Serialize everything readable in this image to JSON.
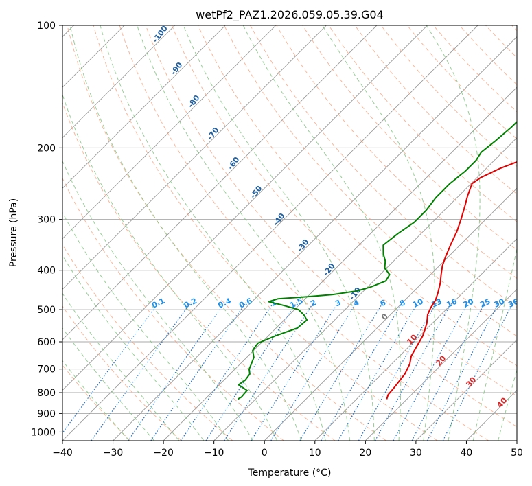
{
  "chart_data": {
    "type": "line",
    "title": "wetPf2_PAZ1.2026.059.05.39.G04",
    "xlabel": "Temperature (°C)",
    "ylabel": "Pressure (hPa)",
    "xlim": [
      -40,
      50
    ],
    "ylim": [
      1050,
      100
    ],
    "y_scale": "log",
    "grid": true,
    "x_ticks": [
      -40,
      -30,
      -20,
      -10,
      0,
      10,
      20,
      30,
      40,
      50
    ],
    "y_ticks": [
      100,
      200,
      300,
      400,
      500,
      600,
      700,
      800,
      900,
      1000
    ],
    "series": [
      {
        "color": "#e00000",
        "points": [
          [
            16,
            830
          ],
          [
            15.4,
            810
          ],
          [
            15.2,
            780
          ],
          [
            14.6,
            720
          ],
          [
            13.6,
            680
          ],
          [
            12.3,
            650
          ],
          [
            11.6,
            620
          ],
          [
            10.6,
            580
          ],
          [
            8.9,
            540
          ],
          [
            7.4,
            515
          ],
          [
            6.6,
            495
          ],
          [
            6.1,
            475
          ],
          [
            5.1,
            455
          ],
          [
            3.6,
            430
          ],
          [
            2.1,
            410
          ],
          [
            0.6,
            390
          ],
          [
            -0.6,
            370
          ],
          [
            -2,
            345
          ],
          [
            -3.4,
            320
          ],
          [
            -4.9,
            300
          ],
          [
            -6.6,
            280
          ],
          [
            -8.3,
            262
          ],
          [
            -9.8,
            245
          ],
          [
            -9.3,
            237
          ],
          [
            -7.3,
            225
          ],
          [
            -4.8,
            215
          ],
          [
            -2.6,
            205
          ],
          [
            0.9,
            193
          ],
          [
            3.6,
            183
          ],
          [
            6.2,
            173
          ],
          [
            8.4,
            160
          ],
          [
            10.1,
            146
          ],
          [
            12,
            132
          ],
          [
            13.7,
            120
          ],
          [
            14.4,
            112
          ],
          [
            15.2,
            105
          ],
          [
            15.5,
            100
          ]
        ]
      },
      {
        "color": "#008000",
        "points": [
          [
            -13.5,
            830
          ],
          [
            -13.2,
            820
          ],
          [
            -13.4,
            790
          ],
          [
            -16.2,
            765
          ],
          [
            -15.8,
            745
          ],
          [
            -16.1,
            720
          ],
          [
            -17.2,
            700
          ],
          [
            -17.8,
            680
          ],
          [
            -18.6,
            655
          ],
          [
            -20.2,
            630
          ],
          [
            -20.6,
            605
          ],
          [
            -18.6,
            580
          ],
          [
            -15.8,
            555
          ],
          [
            -15.5,
            530
          ],
          [
            -17.1,
            515
          ],
          [
            -19.2,
            500
          ],
          [
            -23.4,
            487
          ],
          [
            -26.7,
            478
          ],
          [
            -25.4,
            470
          ],
          [
            -19.4,
            464
          ],
          [
            -15.4,
            459
          ],
          [
            -11.4,
            450
          ],
          [
            -9.4,
            440
          ],
          [
            -7.6,
            425
          ],
          [
            -8.1,
            410
          ],
          [
            -10.4,
            395
          ],
          [
            -11.6,
            380
          ],
          [
            -13.4,
            365
          ],
          [
            -15.2,
            347
          ],
          [
            -14.6,
            325
          ],
          [
            -13.6,
            305
          ],
          [
            -13.6,
            285
          ],
          [
            -14.2,
            265
          ],
          [
            -14.2,
            245
          ],
          [
            -13.6,
            228
          ],
          [
            -13.6,
            215
          ],
          [
            -14.2,
            205
          ],
          [
            -13.6,
            192
          ],
          [
            -13.2,
            178
          ],
          [
            -13.1,
            165
          ],
          [
            -12.7,
            155
          ],
          [
            -11.1,
            145
          ],
          [
            -8.9,
            135
          ],
          [
            -7.4,
            127
          ],
          [
            -6.1,
            120
          ],
          [
            -5.3,
            113
          ],
          [
            -4.4,
            107
          ],
          [
            -3.2,
            104
          ],
          [
            -1.5,
            100
          ]
        ]
      }
    ],
    "mixing_ratio_labels": [
      "0.1",
      "0.2",
      "0.4",
      "0.6",
      "1",
      "1.5",
      "2",
      "3",
      "4",
      "6",
      "8",
      "10",
      "13",
      "16",
      "20",
      "25",
      "30",
      "36"
    ],
    "dry_adiabat_labels": [
      "-100",
      "-90",
      "-80",
      "-70",
      "-60",
      "-50",
      "-40",
      "-30",
      "-20",
      "-10"
    ],
    "moist_adiabat_labels": [
      "0",
      "10",
      "20",
      "30",
      "40"
    ],
    "colors": {
      "temperature": "#e00000",
      "dewpoint": "#008000",
      "dry_adiabat": "#f4a582",
      "moist_adiabat": "#7fbf7f",
      "mixing_ratio": "#1f78d4",
      "isotherm": "#999999",
      "isobar": "#aaaaaa",
      "dry_label": "#1f5f9f",
      "mixing_label": "#1f8fe8",
      "moist_label": "#d62728"
    }
  }
}
